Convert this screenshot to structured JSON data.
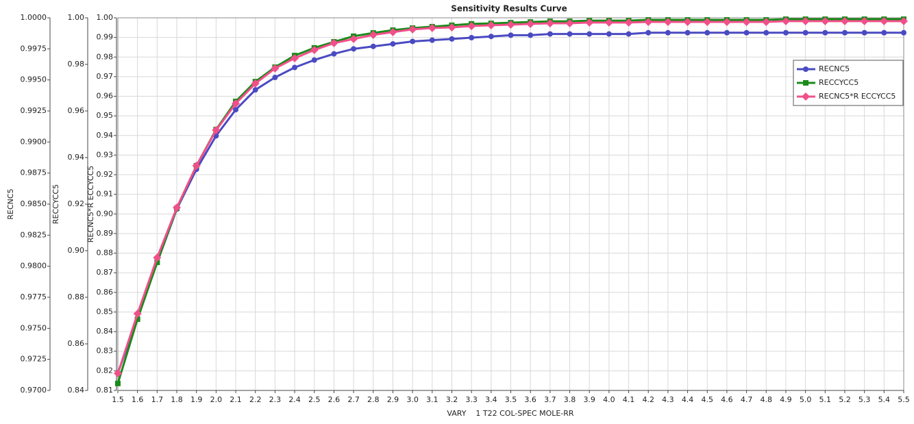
{
  "chart_data": {
    "type": "line",
    "title": "Sensitivity Results Curve",
    "x_label": "VARY    1 T22 COL-SPEC MOLE-RR",
    "y_label": "RECNC5",
    "y2_label": "RECCYCC5",
    "y3_label": "RECNC5*R ECCYCC5",
    "categories": [
      "1.5",
      "1.6",
      "1.7",
      "1.8",
      "1.9",
      "2.0",
      "2.1",
      "2.2",
      "2.3",
      "2.4",
      "2.5",
      "2.6",
      "2.7",
      "2.8",
      "2.9",
      "3.0",
      "3.1",
      "3.2",
      "3.3",
      "3.4",
      "3.5",
      "3.6",
      "3.7",
      "3.8",
      "3.9",
      "4.0",
      "4.1",
      "4.2",
      "4.3",
      "4.4",
      "4.5",
      "4.6",
      "4.7",
      "4.8",
      "4.9",
      "5.0",
      "5.1",
      "5.2",
      "5.3",
      "5.4",
      "5.5"
    ],
    "ylim": [
      0.97,
      1.0
    ],
    "yticks": [
      {
        "value": 0.97,
        "label": "0.9700"
      },
      0.9725,
      {
        "value": 0.975,
        "label": "0.9750"
      },
      0.9775,
      {
        "value": 0.98,
        "label": "0.9800"
      },
      0.9825,
      {
        "value": 0.985,
        "label": "0.9850"
      },
      0.9875,
      {
        "value": 0.99,
        "label": "0.9900"
      },
      0.9925,
      {
        "value": 0.995,
        "label": "0.9950"
      },
      0.9975,
      {
        "value": 1.0,
        "label": "1.0000"
      }
    ],
    "y2lim": [
      0.84,
      1.0
    ],
    "y2ticks": [
      0.84,
      0.86,
      0.88,
      {
        "value": 0.9,
        "label": "0.90"
      },
      0.92,
      0.94,
      0.96,
      0.98,
      {
        "value": 1.0,
        "label": "1.00"
      }
    ],
    "y3lim": [
      0.81,
      1.0
    ],
    "y3ticks": [
      0.81,
      0.82,
      0.83,
      0.84,
      0.85,
      0.86,
      0.87,
      0.88,
      0.89,
      {
        "value": 0.9,
        "label": "0.90"
      },
      0.91,
      0.92,
      0.93,
      0.94,
      0.95,
      0.96,
      0.97,
      0.98,
      0.99,
      {
        "value": 1.0,
        "label": "1.00"
      }
    ],
    "grid": true,
    "legend": "upper right",
    "series": [
      {
        "name": "RECNC5",
        "color": "#4a4ac2",
        "marker": "circle",
        "axis": "y",
        "values": [
          0.9714,
          0.9758,
          0.9803,
          0.9846,
          0.9878,
          0.9905,
          0.9926,
          0.9942,
          0.9952,
          0.996,
          0.9966,
          0.9971,
          0.9975,
          0.9977,
          0.9979,
          0.9981,
          0.9982,
          0.9983,
          0.9984,
          0.9985,
          0.9986,
          0.9986,
          0.9987,
          0.9987,
          0.9987,
          0.9987,
          0.9987,
          0.9988,
          0.9988,
          0.9988,
          0.9988,
          0.9988,
          0.9988,
          0.9988,
          0.9988,
          0.9988,
          0.9988,
          0.9988,
          0.9988,
          0.9988,
          0.9988
        ]
      },
      {
        "name": "RECCYCC5",
        "color": "#1a8a1a",
        "marker": "square",
        "axis": "y2",
        "values": [
          0.843,
          0.8706,
          0.895,
          0.9182,
          0.9365,
          0.952,
          0.9641,
          0.9726,
          0.9788,
          0.9838,
          0.9871,
          0.9897,
          0.9921,
          0.9935,
          0.9947,
          0.9956,
          0.9962,
          0.9968,
          0.9974,
          0.9976,
          0.9979,
          0.9982,
          0.9985,
          0.9985,
          0.9988,
          0.9988,
          0.9988,
          0.9991,
          0.9991,
          0.9991,
          0.9991,
          0.9991,
          0.9991,
          0.9991,
          0.9994,
          0.9994,
          0.9994,
          0.9994,
          0.9994,
          0.9994,
          0.9994
        ]
      },
      {
        "name": "RECNC5*R ECCYCC5",
        "color": "#f0508a",
        "marker": "diamond",
        "axis": "y3",
        "values": [
          0.8187,
          0.8491,
          0.8777,
          0.9032,
          0.9246,
          0.9427,
          0.9563,
          0.9665,
          0.9742,
          0.9794,
          0.9836,
          0.9871,
          0.9892,
          0.9913,
          0.9927,
          0.9941,
          0.9948,
          0.9951,
          0.9958,
          0.9962,
          0.9965,
          0.9969,
          0.9972,
          0.9972,
          0.9976,
          0.9976,
          0.9976,
          0.9979,
          0.9979,
          0.9979,
          0.9979,
          0.9979,
          0.9979,
          0.9979,
          0.9983,
          0.9983,
          0.9983,
          0.9983,
          0.9983,
          0.9983,
          0.9983
        ]
      }
    ]
  }
}
